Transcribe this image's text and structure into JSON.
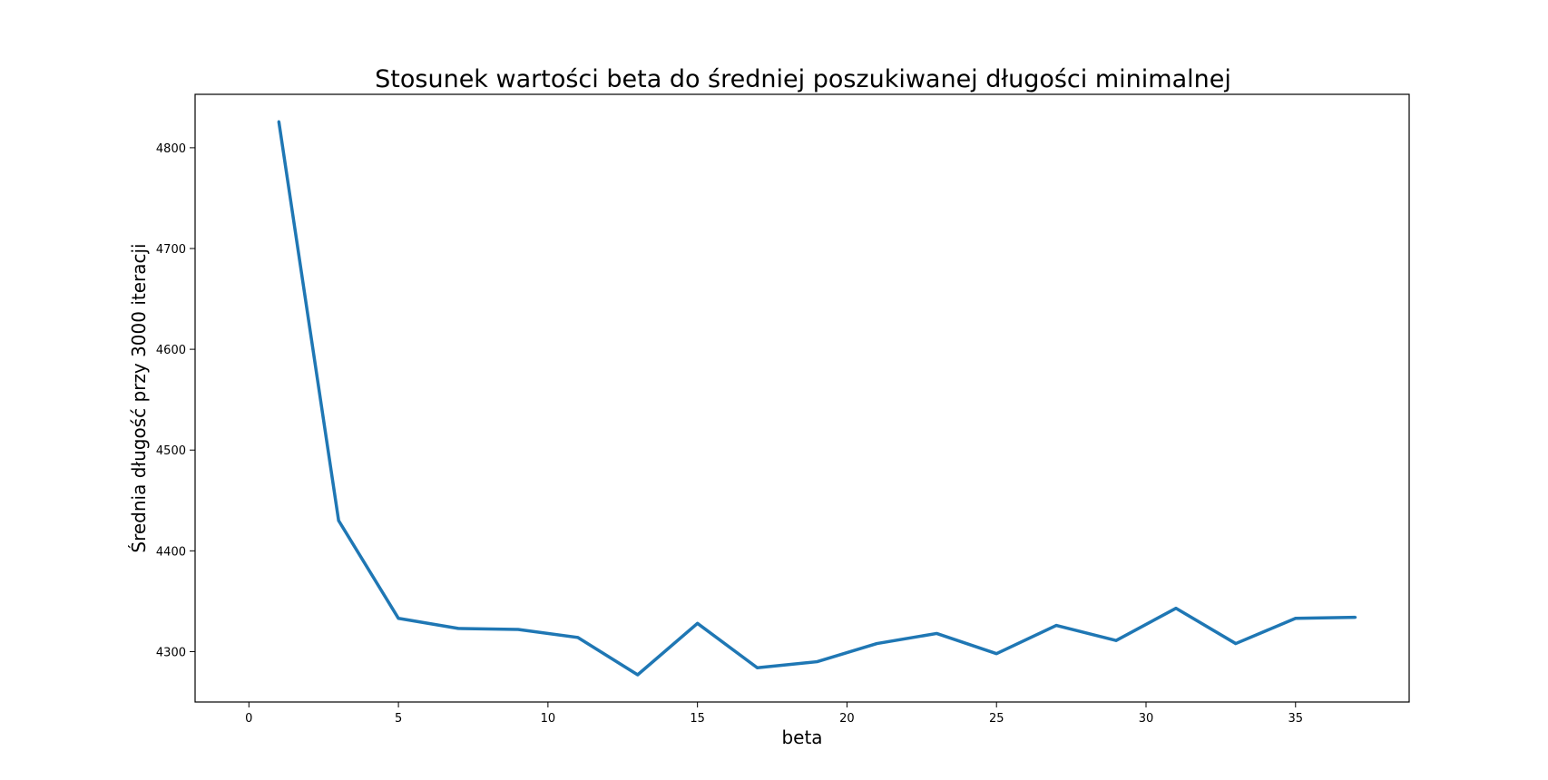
{
  "chart_data": {
    "type": "line",
    "title": "Stosunek wartości beta do średniej poszukiwanej długości minimalnej",
    "xlabel": "beta",
    "ylabel": "Średnia długość przy 3000 iteracji",
    "xlim": [
      -1.8,
      38.8
    ],
    "ylim": [
      4250,
      4853
    ],
    "xticks": [
      0,
      5,
      10,
      15,
      20,
      25,
      30,
      35
    ],
    "yticks": [
      4300,
      4400,
      4500,
      4600,
      4700,
      4800
    ],
    "grid": false,
    "legend": "none",
    "line_color": "#1f77b4",
    "series": [
      {
        "x": [
          1,
          3,
          5,
          7,
          9,
          11,
          13,
          15,
          17,
          19,
          21,
          23,
          25,
          27,
          29,
          31,
          33,
          35,
          37
        ],
        "values": [
          4826,
          4430,
          4333,
          4323,
          4322,
          4314,
          4277,
          4328,
          4284,
          4290,
          4308,
          4318,
          4298,
          4326,
          4311,
          4343,
          4308,
          4333,
          4334
        ]
      }
    ]
  }
}
